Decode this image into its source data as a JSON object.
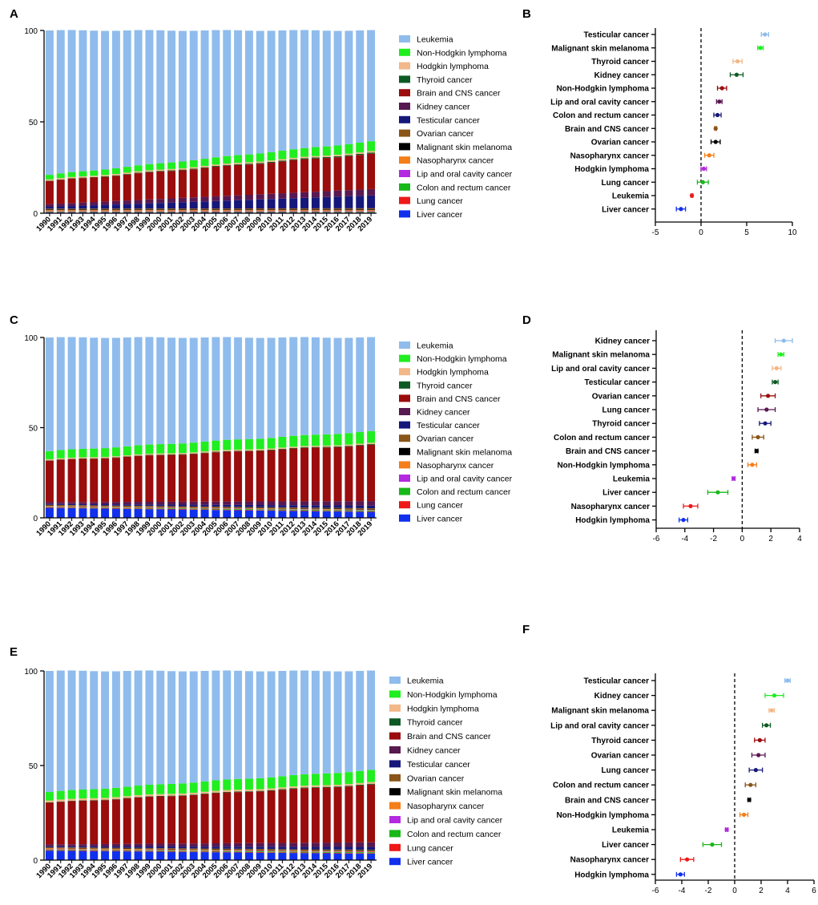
{
  "colors": {
    "Leukemia": "#8fbcec",
    "Non-Hodgkin lymphoma": "#20ee20",
    "Hodgkin lymphoma": "#f2b889",
    "Thyroid cancer": "#0e5a25",
    "Brain and CNS cancer": "#9b0c0c",
    "Kidney cancer": "#581850",
    "Testicular cancer": "#16177a",
    "Ovarian cancer": "#8a5518",
    "Malignant skin melanoma": "#000000",
    "Nasopharynx cancer": "#f57e18",
    "Lip and oral cavity cancer": "#b32ae0",
    "Colon and rectum cancer": "#18b818",
    "Lung cancer": "#ee1818",
    "Liver cancer": "#1030ee"
  },
  "chart_data": [
    {
      "panel": "A",
      "type": "bar",
      "stacked": true,
      "years": [
        "1990",
        "1991",
        "1992",
        "1993",
        "1994",
        "1995",
        "1996",
        "1997",
        "1998",
        "1999",
        "2000",
        "2001",
        "2002",
        "2003",
        "2004",
        "2005",
        "2006",
        "2007",
        "2008",
        "2009",
        "2010",
        "2011",
        "2012",
        "2013",
        "2014",
        "2015",
        "2016",
        "2017",
        "2018",
        "2019"
      ],
      "ylim": [
        0,
        100
      ],
      "yticks": [
        "0",
        "50",
        "100"
      ],
      "legend": [
        "Leukemia",
        "Non-Hodgkin lymphoma",
        "Hodgkin lymphoma",
        "Thyroid cancer",
        "Brain and CNS cancer",
        "Kidney cancer",
        "Testicular cancer",
        "Ovarian cancer",
        "Malignant skin melanoma",
        "Nasopharynx cancer",
        "Lip and oral cavity cancer",
        "Colon and rectum cancer",
        "Lung cancer",
        "Liver cancer"
      ],
      "series": [
        {
          "name": "Liver cancer",
          "start": 0.5,
          "end": 0.4
        },
        {
          "name": "Lung cancer",
          "start": 0.2,
          "end": 0.2
        },
        {
          "name": "Colon and rectum cancer",
          "start": 0.3,
          "end": 0.3
        },
        {
          "name": "Lip and oral cavity cancer",
          "start": 0.2,
          "end": 0.3
        },
        {
          "name": "Nasopharynx cancer",
          "start": 0.5,
          "end": 0.5
        },
        {
          "name": "Malignant skin melanoma",
          "start": 0.3,
          "end": 0.4
        },
        {
          "name": "Ovarian cancer",
          "start": 0.5,
          "end": 0.6
        },
        {
          "name": "Testicular cancer",
          "start": 1.0,
          "end": 7.0
        },
        {
          "name": "Kidney cancer",
          "start": 1.5,
          "end": 3.5
        },
        {
          "name": "Brain and CNS cancer",
          "start": 12.6,
          "end": 19.2
        },
        {
          "name": "Thyroid cancer",
          "start": 0.2,
          "end": 0.6
        },
        {
          "name": "Hodgkin lymphoma",
          "start": 0.7,
          "end": 0.8
        },
        {
          "name": "Non-Hodgkin lymphoma",
          "start": 2.5,
          "end": 5.4
        },
        {
          "name": "Leukemia",
          "start": 79.0,
          "end": 60.8
        }
      ]
    },
    {
      "panel": "B",
      "type": "scatter",
      "xlim": [
        -5,
        10
      ],
      "xticks": [
        "-5",
        "0",
        "5",
        "10"
      ],
      "points": [
        {
          "label": "Testicular cancer",
          "color": "Leukemia",
          "value": 7.0,
          "lo": 6.6,
          "hi": 7.4
        },
        {
          "label": "Malignant skin melanoma",
          "color": "Non-Hodgkin lymphoma",
          "value": 6.5,
          "lo": 6.2,
          "hi": 6.8
        },
        {
          "label": "Thyroid cancer",
          "color": "Hodgkin lymphoma",
          "value": 4.0,
          "lo": 3.5,
          "hi": 4.5
        },
        {
          "label": "Kidney cancer",
          "color": "Thyroid cancer",
          "value": 3.9,
          "lo": 3.2,
          "hi": 4.6
        },
        {
          "label": "Non-Hodgkin lymphoma",
          "color": "Brain and CNS cancer",
          "value": 2.3,
          "lo": 1.8,
          "hi": 2.8
        },
        {
          "label": "Lip and oral cavity cancer",
          "color": "Kidney cancer",
          "value": 2.0,
          "lo": 1.7,
          "hi": 2.3
        },
        {
          "label": "Colon and rectum cancer",
          "color": "Testicular cancer",
          "value": 1.8,
          "lo": 1.4,
          "hi": 2.2
        },
        {
          "label": "Brain and CNS cancer",
          "color": "Ovarian cancer",
          "value": 1.6,
          "lo": 1.5,
          "hi": 1.7
        },
        {
          "label": "Ovarian cancer",
          "color": "Malignant skin melanoma",
          "value": 1.6,
          "lo": 1.1,
          "hi": 2.1
        },
        {
          "label": "Nasopharynx cancer",
          "color": "Nasopharynx cancer",
          "value": 0.9,
          "lo": 0.4,
          "hi": 1.4
        },
        {
          "label": "Hodgkin lymphoma",
          "color": "Lip and oral cavity cancer",
          "value": 0.3,
          "lo": 0.0,
          "hi": 0.6
        },
        {
          "label": "Lung cancer",
          "color": "Colon and rectum cancer",
          "value": 0.2,
          "lo": -0.4,
          "hi": 0.8
        },
        {
          "label": "Leukemia",
          "color": "Lung cancer",
          "value": -1.0,
          "lo": -1.1,
          "hi": -0.9
        },
        {
          "label": "Liver cancer",
          "color": "Liver cancer",
          "value": -2.2,
          "lo": -2.7,
          "hi": -1.7
        }
      ]
    },
    {
      "panel": "C",
      "type": "bar",
      "stacked": true,
      "years": [
        "1990",
        "1991",
        "1992",
        "1993",
        "1994",
        "1995",
        "1996",
        "1997",
        "1998",
        "1999",
        "2000",
        "2001",
        "2002",
        "2003",
        "2004",
        "2005",
        "2006",
        "2007",
        "2008",
        "2009",
        "2010",
        "2011",
        "2012",
        "2013",
        "2014",
        "2015",
        "2016",
        "2017",
        "2018",
        "2019"
      ],
      "ylim": [
        0,
        100
      ],
      "yticks": [
        "0",
        "50",
        "100"
      ],
      "legend": [
        "Leukemia",
        "Non-Hodgkin lymphoma",
        "Hodgkin lymphoma",
        "Thyroid cancer",
        "Brain and CNS cancer",
        "Kidney cancer",
        "Testicular cancer",
        "Ovarian cancer",
        "Malignant skin melanoma",
        "Nasopharynx cancer",
        "Lip and oral cavity cancer",
        "Colon and rectum cancer",
        "Lung cancer",
        "Liver cancer"
      ],
      "series": [
        {
          "name": "Liver cancer",
          "start": 5.5,
          "end": 3.3
        },
        {
          "name": "Lung cancer",
          "start": 0.3,
          "end": 0.3
        },
        {
          "name": "Colon and rectum cancer",
          "start": 0.3,
          "end": 0.5
        },
        {
          "name": "Lip and oral cavity cancer",
          "start": 0.2,
          "end": 0.2
        },
        {
          "name": "Nasopharynx cancer",
          "start": 0.4,
          "end": 0.3
        },
        {
          "name": "Malignant skin melanoma",
          "start": 0.2,
          "end": 0.3
        },
        {
          "name": "Ovarian cancer",
          "start": 0.3,
          "end": 0.4
        },
        {
          "name": "Testicular cancer",
          "start": 0.5,
          "end": 1.5
        },
        {
          "name": "Kidney cancer",
          "start": 1.0,
          "end": 2.5
        },
        {
          "name": "Brain and CNS cancer",
          "start": 23.0,
          "end": 31.0
        },
        {
          "name": "Thyroid cancer",
          "start": 0.2,
          "end": 0.4
        },
        {
          "name": "Hodgkin lymphoma",
          "start": 0.6,
          "end": 0.7
        },
        {
          "name": "Non-Hodgkin lymphoma",
          "start": 4.5,
          "end": 6.5
        },
        {
          "name": "Leukemia",
          "start": 63.0,
          "end": 52.1
        }
      ]
    },
    {
      "panel": "D",
      "type": "scatter",
      "xlim": [
        -6,
        4
      ],
      "xticks": [
        "-6",
        "-4",
        "-2",
        "0",
        "2",
        "4"
      ],
      "points": [
        {
          "label": "Kidney cancer",
          "color": "Leukemia",
          "value": 2.9,
          "lo": 2.3,
          "hi": 3.5
        },
        {
          "label": "Malignant skin melanoma",
          "color": "Non-Hodgkin lymphoma",
          "value": 2.7,
          "lo": 2.5,
          "hi": 2.9
        },
        {
          "label": "Lip and oral cavity cancer",
          "color": "Hodgkin lymphoma",
          "value": 2.4,
          "lo": 2.1,
          "hi": 2.7
        },
        {
          "label": "Testicular cancer",
          "color": "Thyroid cancer",
          "value": 2.3,
          "lo": 2.1,
          "hi": 2.5
        },
        {
          "label": "Ovarian cancer",
          "color": "Brain and CNS cancer",
          "value": 1.8,
          "lo": 1.3,
          "hi": 2.3
        },
        {
          "label": "Lung cancer",
          "color": "Kidney cancer",
          "value": 1.7,
          "lo": 1.1,
          "hi": 2.3
        },
        {
          "label": "Thyroid cancer",
          "color": "Testicular cancer",
          "value": 1.6,
          "lo": 1.2,
          "hi": 2.0
        },
        {
          "label": "Colon and rectum cancer",
          "color": "Ovarian cancer",
          "value": 1.1,
          "lo": 0.7,
          "hi": 1.5
        },
        {
          "label": "Brain and CNS cancer",
          "color": "Malignant skin melanoma",
          "value": 1.0,
          "lo": 0.9,
          "hi": 1.1
        },
        {
          "label": "Non-Hodgkin lymphoma",
          "color": "Nasopharynx cancer",
          "value": 0.7,
          "lo": 0.4,
          "hi": 1.0
        },
        {
          "label": "Leukemia",
          "color": "Lip and oral cavity cancer",
          "value": -0.6,
          "lo": -0.7,
          "hi": -0.5
        },
        {
          "label": "Liver cancer",
          "color": "Colon and rectum cancer",
          "value": -1.7,
          "lo": -2.4,
          "hi": -1.0
        },
        {
          "label": "Nasopharynx cancer",
          "color": "Lung cancer",
          "value": -3.6,
          "lo": -4.1,
          "hi": -3.1
        },
        {
          "label": "Hodgkin lymphoma",
          "color": "Liver cancer",
          "value": -4.1,
          "lo": -4.4,
          "hi": -3.8
        }
      ]
    },
    {
      "panel": "E",
      "type": "bar",
      "stacked": true,
      "years": [
        "1990",
        "1991",
        "1992",
        "1993",
        "1994",
        "1995",
        "1996",
        "1997",
        "1998",
        "1999",
        "2000",
        "2001",
        "2002",
        "2003",
        "2004",
        "2005",
        "2006",
        "2007",
        "2008",
        "2009",
        "2010",
        "2011",
        "2012",
        "2013",
        "2014",
        "2015",
        "2016",
        "2017",
        "2018",
        "2019"
      ],
      "ylim": [
        0,
        100
      ],
      "yticks": [
        "0",
        "50",
        "100"
      ],
      "legend": [
        "Leukemia",
        "Non-Hodgkin lymphoma",
        "Hodgkin lymphoma",
        "Thyroid cancer",
        "Brain and CNS cancer",
        "Kidney cancer",
        "Testicular cancer",
        "Ovarian cancer",
        "Malignant skin melanoma",
        "Nasopharynx cancer",
        "Lip and oral cavity cancer",
        "Colon and rectum cancer",
        "Lung cancer",
        "Liver cancer"
      ],
      "series": [
        {
          "name": "Liver cancer",
          "start": 5.0,
          "end": 3.4
        },
        {
          "name": "Lung cancer",
          "start": 0.3,
          "end": 0.3
        },
        {
          "name": "Colon and rectum cancer",
          "start": 0.3,
          "end": 0.5
        },
        {
          "name": "Lip and oral cavity cancer",
          "start": 0.2,
          "end": 0.2
        },
        {
          "name": "Nasopharynx cancer",
          "start": 0.5,
          "end": 0.4
        },
        {
          "name": "Malignant skin melanoma",
          "start": 0.2,
          "end": 0.3
        },
        {
          "name": "Ovarian cancer",
          "start": 0.3,
          "end": 0.4
        },
        {
          "name": "Testicular cancer",
          "start": 0.5,
          "end": 1.5
        },
        {
          "name": "Kidney cancer",
          "start": 1.0,
          "end": 2.5
        },
        {
          "name": "Brain and CNS cancer",
          "start": 22.0,
          "end": 30.5
        },
        {
          "name": "Thyroid cancer",
          "start": 0.2,
          "end": 0.4
        },
        {
          "name": "Hodgkin lymphoma",
          "start": 1.0,
          "end": 0.9
        },
        {
          "name": "Non-Hodgkin lymphoma",
          "start": 4.5,
          "end": 6.5
        },
        {
          "name": "Leukemia",
          "start": 64.0,
          "end": 52.8
        }
      ]
    },
    {
      "panel": "F",
      "type": "scatter",
      "xlim": [
        -6,
        6
      ],
      "xticks": [
        "-6",
        "-4",
        "-2",
        "0",
        "2",
        "4",
        "6"
      ],
      "points": [
        {
          "label": "Testicular cancer",
          "color": "Leukemia",
          "value": 4.0,
          "lo": 3.8,
          "hi": 4.2
        },
        {
          "label": "Kidney cancer",
          "color": "Non-Hodgkin lymphoma",
          "value": 3.0,
          "lo": 2.3,
          "hi": 3.7
        },
        {
          "label": "Malignant skin melanoma",
          "color": "Hodgkin lymphoma",
          "value": 2.8,
          "lo": 2.6,
          "hi": 3.0
        },
        {
          "label": "Lip and oral cavity cancer",
          "color": "Thyroid cancer",
          "value": 2.4,
          "lo": 2.1,
          "hi": 2.7
        },
        {
          "label": "Thyroid cancer",
          "color": "Brain and CNS cancer",
          "value": 1.9,
          "lo": 1.5,
          "hi": 2.3
        },
        {
          "label": "Ovarian cancer",
          "color": "Kidney cancer",
          "value": 1.8,
          "lo": 1.3,
          "hi": 2.3
        },
        {
          "label": "Lung cancer",
          "color": "Testicular cancer",
          "value": 1.6,
          "lo": 1.1,
          "hi": 2.1
        },
        {
          "label": "Colon and rectum cancer",
          "color": "Ovarian cancer",
          "value": 1.2,
          "lo": 0.8,
          "hi": 1.6
        },
        {
          "label": "Brain and CNS cancer",
          "color": "Malignant skin melanoma",
          "value": 1.1,
          "lo": 1.0,
          "hi": 1.2
        },
        {
          "label": "Non-Hodgkin lymphoma",
          "color": "Nasopharynx cancer",
          "value": 0.7,
          "lo": 0.4,
          "hi": 1.0
        },
        {
          "label": "Leukemia",
          "color": "Lip and oral cavity cancer",
          "value": -0.6,
          "lo": -0.7,
          "hi": -0.5
        },
        {
          "label": "Liver cancer",
          "color": "Colon and rectum cancer",
          "value": -1.7,
          "lo": -2.4,
          "hi": -1.0
        },
        {
          "label": "Nasopharynx cancer",
          "color": "Lung cancer",
          "value": -3.6,
          "lo": -4.1,
          "hi": -3.1
        },
        {
          "label": "Hodgkin lymphoma",
          "color": "Liver cancer",
          "value": -4.1,
          "lo": -4.4,
          "hi": -3.8
        }
      ]
    }
  ]
}
